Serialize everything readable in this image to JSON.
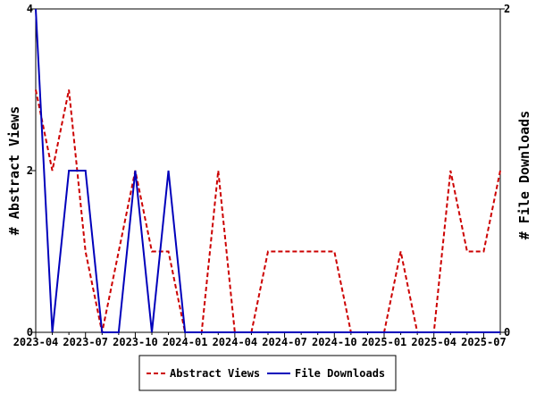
{
  "chart_data": {
    "type": "line",
    "x": [
      "2023-04",
      "2023-05",
      "2023-06",
      "2023-07",
      "2023-08",
      "2023-09",
      "2023-10",
      "2023-11",
      "2023-12",
      "2024-01",
      "2024-02",
      "2024-03",
      "2024-04",
      "2024-05",
      "2024-06",
      "2024-07",
      "2024-08",
      "2024-09",
      "2024-10",
      "2024-11",
      "2024-12",
      "2025-01",
      "2025-02",
      "2025-03",
      "2025-04",
      "2025-05",
      "2025-06",
      "2025-07",
      "2025-08"
    ],
    "x_tick_labels": [
      "2023-04",
      "2023-07",
      "2023-10",
      "2024-01",
      "2024-04",
      "2024-07",
      "2024-10",
      "2025-01",
      "2025-04",
      "2025-07"
    ],
    "series": [
      {
        "name": "Abstract Views",
        "axis": "left",
        "color": "#cc0000",
        "style": "dashed",
        "values": [
          3,
          2,
          3,
          1,
          0,
          1,
          2,
          1,
          1,
          0,
          0,
          2,
          0,
          0,
          1,
          1,
          1,
          1,
          1,
          0,
          0,
          0,
          1,
          0,
          0,
          2,
          1,
          1,
          2
        ]
      },
      {
        "name": "File Downloads",
        "axis": "right",
        "color": "#0000bb",
        "style": "solid",
        "values": [
          2,
          0,
          1,
          1,
          0,
          0,
          1,
          0,
          1,
          0,
          0,
          0,
          0,
          0,
          0,
          0,
          0,
          0,
          0,
          0,
          0,
          0,
          0,
          0,
          0,
          0,
          0,
          0,
          0
        ]
      }
    ],
    "ylabel_left": "# Abstract Views",
    "ylabel_right": "# File Downloads",
    "ylim_left": [
      0,
      4
    ],
    "ylim_right": [
      0,
      2
    ],
    "yticks_left": [
      0,
      2,
      4
    ],
    "yticks_right": [
      0,
      2
    ],
    "legend_position": "bottom",
    "grid": false
  }
}
